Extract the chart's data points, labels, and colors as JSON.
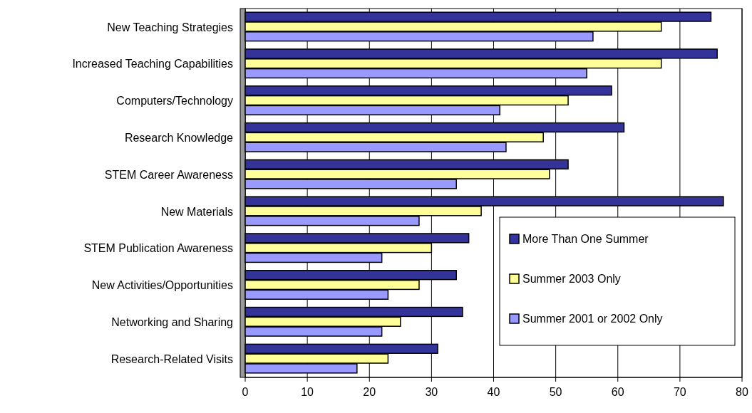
{
  "chart_data": {
    "type": "bar",
    "orientation": "horizontal",
    "categories": [
      "New Teaching Strategies",
      "Increased Teaching Capabilities",
      "Computers/Technology",
      "Research Knowledge",
      "STEM Career Awareness",
      "New Materials",
      "STEM Publication Awareness",
      "New Activities/Opportunities",
      "Networking and Sharing",
      "Research-Related Visits"
    ],
    "series": [
      {
        "name": "More Than One Summer",
        "color": "#333399",
        "values": [
          75,
          76,
          59,
          61,
          52,
          77,
          36,
          34,
          35,
          31
        ]
      },
      {
        "name": "Summer 2003 Only",
        "color": "#ffff99",
        "values": [
          67,
          67,
          52,
          48,
          49,
          38,
          30,
          28,
          25,
          23
        ]
      },
      {
        "name": "Summer 2001 or 2002 Only",
        "color": "#9999ff",
        "values": [
          56,
          55,
          41,
          42,
          34,
          28,
          22,
          23,
          22,
          18
        ]
      }
    ],
    "xlim": [
      0,
      80
    ],
    "xticks": [
      0,
      10,
      20,
      30,
      40,
      50,
      60,
      70,
      80
    ],
    "grid": "x",
    "legend": "bottom right"
  }
}
